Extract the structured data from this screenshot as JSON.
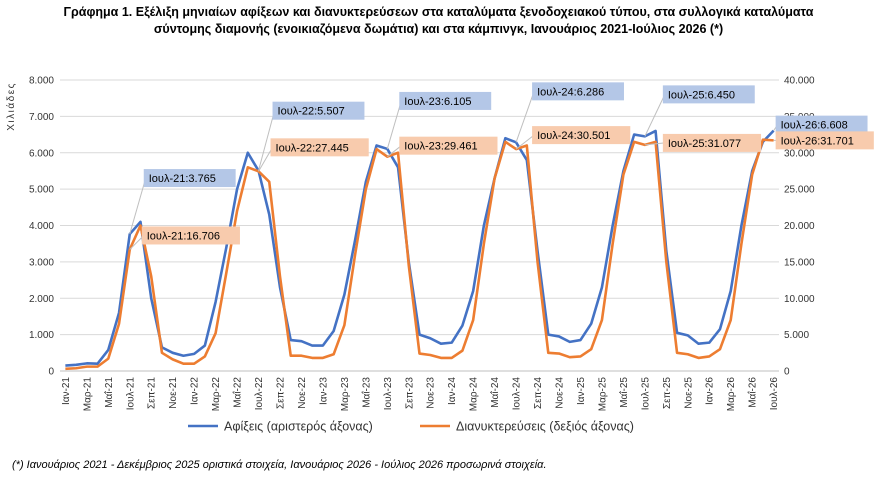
{
  "title": {
    "line1": "Γράφημα 1. Εξέλιξη μηνιαίων αφίξεων και διανυκτερεύσεων στα καταλύματα ξενοδοχειακού τύπου, στα συλλογικά καταλύματα",
    "line2": "σύντομης διαμονής (ενοικιαζόμενα δωμάτια) και στα κάμπινγκ, Ιανουάριος 2021-Ιούλιος 2026 (*)"
  },
  "footnote": "(*) Ιανουάριος 2021 - Δεκέμβριος 2025 οριστικά στοιχεία, Ιανουάριος 2026 - Ιούλιος 2026 προσωρινά στοιχεία.",
  "colors": {
    "arrivals": "#4472C4",
    "nights": "#ED7D31",
    "arrivals_label_bg": "#B4C7E7",
    "nights_label_bg": "#F8CBAD"
  },
  "chart_data": {
    "type": "line",
    "y_axis_unit_label": "Χιλιάδες",
    "x": [
      "Ιαν-21",
      "Φεβ-21",
      "Μαρ-21",
      "Απρ-21",
      "Μαΐ-21",
      "Ιουν-21",
      "Ιουλ-21",
      "Αυγ-21",
      "Σεπ-21",
      "Οκτ-21",
      "Νοε-21",
      "Δεκ-21",
      "Ιαν-22",
      "Φεβ-22",
      "Μαρ-22",
      "Απρ-22",
      "Μαΐ-22",
      "Ιουν-22",
      "Ιουλ-22",
      "Αυγ-22",
      "Σεπ-22",
      "Οκτ-22",
      "Νοε-22",
      "Δεκ-22",
      "Ιαν-23",
      "Φεβ-23",
      "Μαρ-23",
      "Απρ-23",
      "Μαΐ-23",
      "Ιουν-23",
      "Ιουλ-23",
      "Αυγ-23",
      "Σεπ-23",
      "Οκτ-23",
      "Νοε-23",
      "Δεκ-23",
      "Ιαν-24",
      "Φεβ-24",
      "Μαρ-24",
      "Απρ-24",
      "Μαΐ-24",
      "Ιουν-24",
      "Ιουλ-24",
      "Αυγ-24",
      "Σεπ-24",
      "Οκτ-24",
      "Νοε-24",
      "Δεκ-24",
      "Ιαν-25",
      "Φεβ-25",
      "Μαρ-25",
      "Απρ-25",
      "Μαΐ-25",
      "Ιουν-25",
      "Ιουλ-25",
      "Αυγ-25",
      "Σεπ-25",
      "Οκτ-25",
      "Νοε-25",
      "Δεκ-25",
      "Ιαν-26",
      "Φεβ-26",
      "Μαρ-26",
      "Απρ-26",
      "Μαΐ-26",
      "Ιουν-26",
      "Ιουλ-26"
    ],
    "x_tick_labels": [
      "Ιαν-21",
      "Μαρ-21",
      "Μαΐ-21",
      "Ιουλ-21",
      "Σεπ-21",
      "Νοε-21",
      "Ιαν-22",
      "Μαρ-22",
      "Μαΐ-22",
      "Ιουλ-22",
      "Σεπ-22",
      "Νοε-22",
      "Ιαν-23",
      "Μαρ-23",
      "Μαΐ-23",
      "Ιουλ-23",
      "Σεπ-23",
      "Νοε-23",
      "Ιαν-24",
      "Μαρ-24",
      "Μαΐ-24",
      "Ιουλ-24",
      "Σεπ-24",
      "Νοε-24",
      "Ιαν-25",
      "Μαρ-25",
      "Μαΐ-25",
      "Ιουλ-25",
      "Σεπ-25",
      "Νοε-25",
      "Ιαν-26",
      "Μαρ-26",
      "Μαΐ-26",
      "Ιουλ-26"
    ],
    "y_left": {
      "min": 0,
      "max": 8000,
      "step": 1000,
      "tick_labels": [
        "0",
        "1.000",
        "2.000",
        "3.000",
        "4.000",
        "5.000",
        "6.000",
        "7.000",
        "8.000"
      ]
    },
    "y_right": {
      "min": 0,
      "max": 40000,
      "step": 5000,
      "tick_labels": [
        "0",
        "5.000",
        "10.000",
        "15.000",
        "20.000",
        "25.000",
        "30.000",
        "35.000",
        "40.000"
      ]
    },
    "grid": true,
    "legend_position": "bottom",
    "series": [
      {
        "name": "Αφίξεις (αριστερός άξονας)",
        "axis": "left",
        "values": [
          150,
          170,
          210,
          200,
          580,
          1600,
          3765,
          4100,
          2000,
          650,
          500,
          420,
          470,
          700,
          1900,
          3400,
          5000,
          6000,
          5507,
          4300,
          2300,
          850,
          820,
          700,
          700,
          1100,
          2100,
          3600,
          5200,
          6200,
          6105,
          5600,
          3000,
          1000,
          900,
          750,
          780,
          1250,
          2200,
          4000,
          5300,
          6400,
          6286,
          5800,
          3300,
          1000,
          950,
          800,
          850,
          1300,
          2300,
          4000,
          5500,
          6500,
          6450,
          6600,
          3300,
          1050,
          980,
          750,
          780,
          1150,
          2200,
          4000,
          5500,
          6300,
          6608
        ]
      },
      {
        "name": "Διανυκτερεύσεις (δεξιός άξονας)",
        "axis": "right",
        "values": [
          300,
          380,
          600,
          600,
          1700,
          6500,
          16706,
          20000,
          13000,
          2500,
          1600,
          1000,
          1000,
          2000,
          5200,
          13500,
          22000,
          28000,
          27445,
          26000,
          13000,
          2100,
          2100,
          1800,
          1800,
          2300,
          6300,
          16000,
          25000,
          30500,
          29461,
          30000,
          14500,
          2400,
          2200,
          1800,
          1800,
          2800,
          7000,
          17500,
          26500,
          31500,
          30501,
          31000,
          15000,
          2500,
          2400,
          1900,
          2000,
          3000,
          7000,
          17500,
          27000,
          31500,
          31077,
          31500,
          15000,
          2500,
          2300,
          1800,
          2000,
          3000,
          7000,
          17500,
          27000,
          31800,
          31701
        ]
      }
    ],
    "annotations": [
      {
        "series": 0,
        "index": 6,
        "label": "Ιουλ-21:3.765"
      },
      {
        "series": 1,
        "index": 6,
        "label": "Ιουλ-21:16.706"
      },
      {
        "series": 0,
        "index": 18,
        "label": "Ιουλ-22:5.507"
      },
      {
        "series": 1,
        "index": 18,
        "label": "Ιουλ-22:27.445"
      },
      {
        "series": 0,
        "index": 30,
        "label": "Ιουλ-23:6.105"
      },
      {
        "series": 1,
        "index": 30,
        "label": "Ιουλ-23:29.461"
      },
      {
        "series": 0,
        "index": 42,
        "label": "Ιουλ-24:6.286"
      },
      {
        "series": 1,
        "index": 42,
        "label": "Ιουλ-24:30.501"
      },
      {
        "series": 0,
        "index": 54,
        "label": "Ιουλ-25:6.450"
      },
      {
        "series": 1,
        "index": 54,
        "label": "Ιουλ-25:31.077"
      },
      {
        "series": 0,
        "index": 66,
        "label": "Ιουλ-26:6.608"
      },
      {
        "series": 1,
        "index": 66,
        "label": "Ιουλ-26:31.701"
      }
    ]
  }
}
